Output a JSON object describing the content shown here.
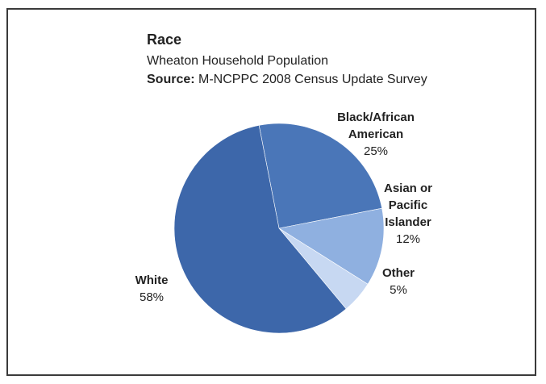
{
  "chart_data": {
    "type": "pie",
    "title": "Race",
    "subtitle": "Wheaton Household Population",
    "source_label": "Source:",
    "source_text": " M-NCPPC 2008 Census Update Survey",
    "start_angle_deg": -101,
    "slices": [
      {
        "name": "Black/African American",
        "name_lines": [
          "Black/African",
          "American"
        ],
        "value": 25,
        "label": "25%",
        "color": "#4a76b8"
      },
      {
        "name": "Asian or Pacific Islander",
        "name_lines": [
          "Asian or",
          "Pacific",
          "Islander"
        ],
        "value": 12,
        "label": "12%",
        "color": "#8fb0e0"
      },
      {
        "name": "Other",
        "name_lines": [
          "Other"
        ],
        "value": 5,
        "label": "5%",
        "color": "#c7d8f2"
      },
      {
        "name": "White",
        "name_lines": [
          "White"
        ],
        "value": 58,
        "label": "58%",
        "color": "#3d67aa"
      }
    ]
  }
}
